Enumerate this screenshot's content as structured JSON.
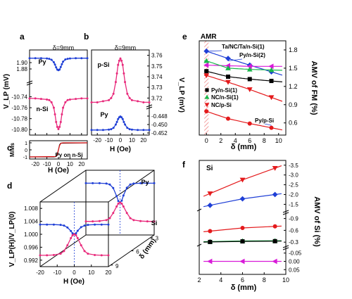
{
  "colors": {
    "blue": "#1f3fd6",
    "pink": "#e8287a",
    "red": "#e41a1c",
    "black": "#000000",
    "green": "#19b84a",
    "magenta": "#d81ad8",
    "hatch": "#f08080"
  },
  "chart_data": [
    {
      "panel": "a",
      "type": "line",
      "annotation": "δ=9mm",
      "ylabel": "V_LP (mV)",
      "xlabel": "",
      "xlim": [
        -25,
        25
      ],
      "x_ticks": [
        -20,
        -10,
        0,
        10,
        20
      ],
      "x_tick_labels": [],
      "series": [
        {
          "name": "Py",
          "color": "blue",
          "ylim": [
            1.84,
            1.94
          ],
          "y_ticks": [
            "1.90",
            "1.88"
          ],
          "y_tick_values": [
            1.9,
            1.88
          ],
          "x": [
            -25,
            -20,
            -15,
            -10,
            -8,
            -6,
            -4,
            -3,
            -2,
            -1,
            0,
            1,
            2,
            3,
            4,
            6,
            8,
            10,
            15,
            20,
            25
          ],
          "y": [
            1.914,
            1.914,
            1.914,
            1.913,
            1.912,
            1.909,
            1.901,
            1.894,
            1.885,
            1.878,
            1.876,
            1.878,
            1.886,
            1.895,
            1.903,
            1.91,
            1.912,
            1.913,
            1.914,
            1.914,
            1.914
          ]
        },
        {
          "name": "n-Si",
          "color": "pink",
          "ylim": [
            -10.81,
            -10.72
          ],
          "y_ticks": [
            "-10.74",
            "-10.76",
            "-10.78",
            "-10.80"
          ],
          "y_tick_values": [
            -10.74,
            -10.76,
            -10.78,
            -10.8
          ],
          "x": [
            -25,
            -20,
            -15,
            -10,
            -8,
            -6,
            -4,
            -3,
            -2,
            -1,
            0,
            1,
            2,
            3,
            4,
            6,
            8,
            10,
            15,
            20,
            25
          ],
          "y": [
            -10.743,
            -10.743,
            -10.744,
            -10.745,
            -10.746,
            -10.75,
            -10.76,
            -10.772,
            -10.786,
            -10.795,
            -10.799,
            -10.795,
            -10.786,
            -10.772,
            -10.76,
            -10.75,
            -10.746,
            -10.745,
            -10.744,
            -10.743,
            -10.743
          ]
        }
      ]
    },
    {
      "panel": "b",
      "type": "line",
      "annotation": "δ=9mm",
      "ylabel": "V_LP (mV)",
      "xlabel": "H (Oe)",
      "xlim": [
        -25,
        25
      ],
      "x_ticks": [
        -20,
        -10,
        0,
        10,
        20
      ],
      "x_tick_labels": [
        "-20",
        "-10",
        "0",
        "10",
        "20"
      ],
      "series": [
        {
          "name": "p-Si",
          "color": "pink",
          "ylim": [
            3.713,
            3.765
          ],
          "y_ticks": [
            "3.76",
            "3.75",
            "3.74",
            "3.73",
            "3.72"
          ],
          "y_tick_values": [
            3.76,
            3.75,
            3.74,
            3.73,
            3.72
          ],
          "x": [
            -25,
            -20,
            -15,
            -10,
            -8,
            -6,
            -4,
            -3,
            -2,
            -1,
            0,
            1,
            2,
            3,
            4,
            6,
            8,
            10,
            15,
            20,
            25
          ],
          "y": [
            3.716,
            3.716,
            3.717,
            3.718,
            3.72,
            3.724,
            3.735,
            3.743,
            3.751,
            3.755,
            3.757,
            3.755,
            3.751,
            3.743,
            3.735,
            3.724,
            3.72,
            3.718,
            3.717,
            3.716,
            3.716
          ]
        },
        {
          "name": "Py",
          "color": "blue",
          "ylim": [
            -0.4525,
            -0.4465
          ],
          "y_ticks": [
            "-0.448",
            "-0.450",
            "-0.452"
          ],
          "y_tick_values": [
            -0.448,
            -0.45,
            -0.452
          ],
          "x": [
            -25,
            -20,
            -15,
            -10,
            -8,
            -6,
            -4,
            -3,
            -2,
            -1,
            0,
            1,
            2,
            3,
            4,
            6,
            8,
            10,
            15,
            20,
            25
          ],
          "y": [
            -0.4513,
            -0.4513,
            -0.4513,
            -0.4512,
            -0.4511,
            -0.4508,
            -0.45,
            -0.4494,
            -0.4487,
            -0.4483,
            -0.4481,
            -0.4483,
            -0.4487,
            -0.4494,
            -0.45,
            -0.4508,
            -0.4511,
            -0.4512,
            -0.4513,
            -0.4513,
            -0.4513
          ]
        }
      ]
    },
    {
      "panel": "c",
      "type": "line",
      "ylabel": "M/Ms",
      "xlabel": "H (Oe)",
      "xlim": [
        -25,
        25
      ],
      "x_ticks": [
        -20,
        -10,
        0,
        10,
        20
      ],
      "x_tick_labels": [
        "-20",
        "-10",
        "0",
        "10",
        "20"
      ],
      "ylim": [
        -1.3,
        1.3
      ],
      "y_ticks": [
        "1",
        "0",
        "-1"
      ],
      "y_tick_values": [
        1,
        0,
        -1
      ],
      "annotation": "Py on n-Si",
      "series": [
        {
          "color": "black",
          "x": [
            -25,
            -8,
            -6,
            -4,
            -3,
            -2,
            -1,
            0,
            1,
            2,
            25
          ],
          "y": [
            -1,
            -1,
            -1,
            -1,
            -0.98,
            -0.9,
            -0.6,
            0.0,
            0.7,
            0.95,
            1
          ]
        },
        {
          "color": "red",
          "x": [
            -25,
            -2,
            -1,
            0,
            1,
            2,
            3,
            4,
            6,
            8,
            25
          ],
          "y": [
            -1,
            -0.95,
            -0.7,
            0.0,
            0.6,
            0.9,
            0.98,
            1,
            1,
            1,
            1
          ]
        }
      ]
    },
    {
      "panel": "d",
      "type": "line",
      "ylabel": "V_LP(H)/V_LP(0)",
      "xlabel": "H (Oe)",
      "zlabel": "δ (mm)",
      "xlim": [
        -20,
        20
      ],
      "x_ticks": [
        "-20",
        "-10",
        "0",
        "10",
        "20"
      ],
      "x_tick_values": [
        -20,
        -10,
        0,
        10,
        20
      ],
      "ylim": [
        0.99,
        1.01
      ],
      "y_ticks": [
        "1.008",
        "1.004",
        "1.000",
        "0.996",
        "0.992"
      ],
      "y_tick_values": [
        1.008,
        1.004,
        1.0,
        0.996,
        0.992
      ],
      "z_ticks": [
        "3",
        "6",
        "9"
      ],
      "series": [
        {
          "name": "Py",
          "color": "blue",
          "layer": "back",
          "delta_mm": 3,
          "x": [
            -20,
            -16,
            -12,
            -8,
            -6,
            -4,
            -2,
            -1,
            0,
            1,
            2,
            4,
            6,
            8,
            12,
            16,
            20
          ],
          "y": [
            1.006,
            1.006,
            1.006,
            1.0059,
            1.0056,
            1.0045,
            1.002,
            1.0005,
            1.0,
            1.0006,
            1.0022,
            1.0046,
            1.0056,
            1.0059,
            1.006,
            1.006,
            1.006
          ]
        },
        {
          "name": "Si",
          "color": "pink",
          "layer": "back",
          "delta_mm": 3,
          "x": [
            -20,
            -16,
            -12,
            -8,
            -6,
            -4,
            -2,
            -1,
            0,
            1,
            2,
            4,
            6,
            8,
            12,
            16,
            20
          ],
          "y": [
            0.9942,
            0.9942,
            0.9943,
            0.9946,
            0.9952,
            0.9968,
            0.9988,
            0.9997,
            1.0,
            0.9997,
            0.9988,
            0.9968,
            0.9952,
            0.9946,
            0.9943,
            0.9942,
            0.9942
          ]
        },
        {
          "name": "Py",
          "color": "blue",
          "layer": "front",
          "delta_mm": 9,
          "x": [
            -20,
            -16,
            -12,
            -8,
            -6,
            -4,
            -2,
            -1,
            0,
            1,
            2,
            4,
            6,
            8,
            12,
            16,
            20
          ],
          "y": [
            1.003,
            1.003,
            1.003,
            1.0029,
            1.0027,
            1.0021,
            1.001,
            1.0003,
            1.0,
            1.0003,
            1.0011,
            1.0022,
            1.0027,
            1.0029,
            1.003,
            1.003,
            1.003
          ]
        },
        {
          "name": "Si",
          "color": "pink",
          "layer": "front",
          "delta_mm": 9,
          "x": [
            -20,
            -16,
            -12,
            -8,
            -6,
            -4,
            -2,
            -1,
            0,
            1,
            2,
            4,
            6,
            8,
            12,
            16,
            20
          ],
          "y": [
            0.9935,
            0.9935,
            0.9936,
            0.994,
            0.9948,
            0.9966,
            0.9988,
            0.9997,
            1.0,
            0.9997,
            0.9988,
            0.9966,
            0.9948,
            0.994,
            0.9936,
            0.9935,
            0.9935
          ]
        }
      ]
    },
    {
      "panel": "e",
      "type": "scatter",
      "xlabel": "δ (mm)",
      "ylabel": "AMV of FM (%)",
      "xlim": [
        -1,
        11
      ],
      "x_ticks": [
        "0",
        "2",
        "4",
        "6",
        "8",
        "10"
      ],
      "x_tick_values": [
        0,
        2,
        4,
        6,
        8,
        10
      ],
      "ylim": [
        0.4,
        1.95
      ],
      "y_ticks": [
        "1.8",
        "1.5",
        "1.2",
        "0.9",
        "0.6"
      ],
      "y_tick_values": [
        1.8,
        1.5,
        1.2,
        0.9,
        0.6
      ],
      "band_label": "AMR",
      "band_x": [
        -0.3,
        0.3
      ],
      "series": [
        {
          "name": "Ta/NC/Ta/n-Si(1)",
          "color": "blue",
          "marker": "diamond",
          "x": [
            0,
            3,
            6,
            9
          ],
          "y": [
            1.78,
            1.66,
            1.55,
            1.44
          ]
        },
        {
          "name": "Py/n-Si(2)",
          "color": "magenta",
          "marker": "triangle-left",
          "x": [
            0,
            3,
            6,
            9
          ],
          "y": [
            1.55,
            1.54,
            1.53,
            1.53
          ]
        },
        {
          "name": "Py/n-Si(1)",
          "color": "black",
          "marker": "square",
          "x": [
            0,
            3,
            6,
            9
          ],
          "y": [
            1.45,
            1.36,
            1.32,
            1.29
          ]
        },
        {
          "name": "NC/n-Si(1)",
          "color": "green",
          "marker": "triangle-up",
          "x": [
            0,
            3,
            6,
            9
          ],
          "y": [
            1.62,
            1.5,
            1.48,
            1.47
          ]
        },
        {
          "name": "NC/p-Si",
          "color": "red",
          "marker": "triangle-down",
          "x": [
            0,
            3,
            6,
            9
          ],
          "y": [
            1.38,
            1.27,
            1.15,
            1.02
          ]
        },
        {
          "name": "Py/p-Si",
          "color": "red",
          "marker": "circle",
          "x": [
            0,
            3,
            6,
            9
          ],
          "y": [
            0.79,
            0.67,
            0.59,
            0.52
          ]
        }
      ]
    },
    {
      "panel": "f",
      "type": "scatter",
      "xlabel": "δ (mm)",
      "ylabel": "AMV of Si (%)",
      "annotation": "Si",
      "xlim": [
        2,
        10
      ],
      "x_ticks": [
        "2",
        "4",
        "6",
        "8",
        "10"
      ],
      "x_tick_values": [
        2,
        4,
        6,
        8,
        10
      ],
      "y_ticks": [
        "-3.5",
        "-3.0",
        "-2.5",
        "-2.0",
        "-1.5",
        "-0.9",
        "-0.6",
        "-0.3",
        "-0.05",
        "0.00",
        "0.05"
      ],
      "y_segments": [
        {
          "range": [
            -3.6,
            -1.3
          ],
          "ticks": [
            -3.5,
            -3.0,
            -2.5,
            -2.0,
            -1.5
          ]
        },
        {
          "range": [
            -1.0,
            -0.25
          ],
          "ticks": [
            -0.9,
            -0.6,
            -0.3
          ]
        },
        {
          "range": [
            -0.07,
            0.07
          ],
          "ticks": [
            -0.05,
            0.0,
            0.05
          ]
        }
      ],
      "series": [
        {
          "color": "red",
          "marker": "triangle-down",
          "x": [
            3,
            6,
            9
          ],
          "y": [
            -2.05,
            -2.75,
            -3.35
          ]
        },
        {
          "color": "blue",
          "marker": "diamond",
          "x": [
            3,
            6,
            9
          ],
          "y": [
            -1.45,
            -1.78,
            -2.0
          ]
        },
        {
          "color": "red",
          "marker": "circle",
          "x": [
            3,
            6,
            9
          ],
          "y": [
            -0.58,
            -0.66,
            -0.7
          ]
        },
        {
          "color": "green",
          "marker": "triangle-up",
          "x": [
            3,
            6,
            9
          ],
          "y": [
            -0.315,
            -0.33,
            -0.335
          ]
        },
        {
          "color": "black",
          "marker": "square",
          "x": [
            3,
            6,
            9
          ],
          "y": [
            -0.305,
            -0.32,
            -0.325
          ]
        },
        {
          "color": "magenta",
          "marker": "triangle-left",
          "x": [
            3,
            6,
            9
          ],
          "y": [
            0.0,
            0.0,
            0.0
          ]
        }
      ]
    }
  ]
}
